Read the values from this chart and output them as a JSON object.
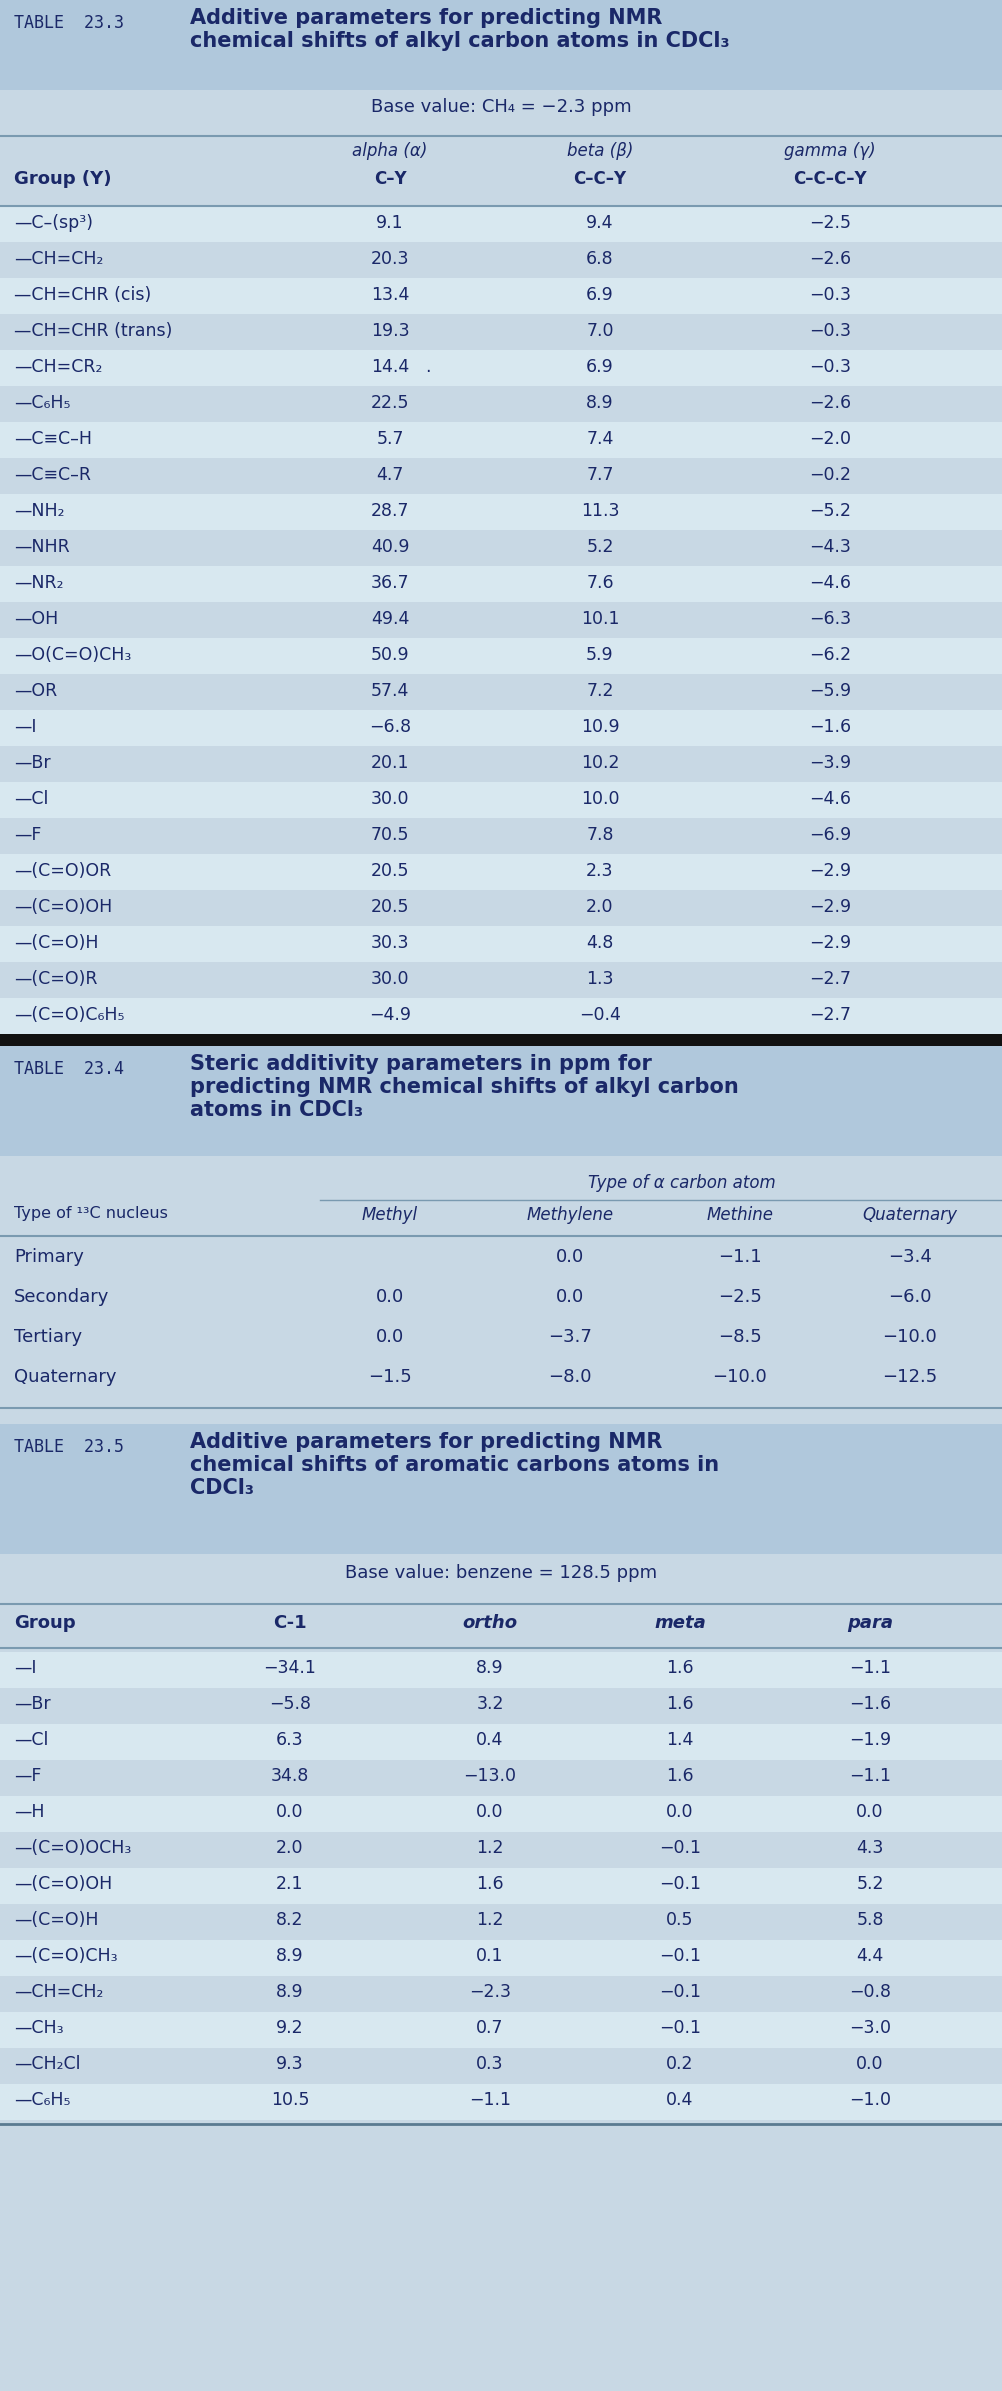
{
  "bg_color": "#c8d8e4",
  "header_bg": "#b0c8dc",
  "row_alt_color": "#d8e8f0",
  "row_base_color": "#c8d8e4",
  "table_header_bg": "#c0d4e4",
  "black_bar": "#111111",
  "text_dark": "#1a2868",
  "text_header": "#1a2868",
  "white": "#ffffff",
  "t1_label": "TABLE  23.3",
  "t1_title": "Additive parameters for predicting NMR\nchemical shifts of alkyl carbon atoms in CDCl₃",
  "t1_base": "Base value: CH₄ = −2.3 ppm",
  "t1_col_headers_top": [
    "alpha (α)",
    "beta (β)",
    "gamma (γ)"
  ],
  "t1_col_headers_bot": [
    "C–Y",
    "C–C–Y",
    "C–C–C–Y"
  ],
  "t1_col0_header": "Group (Y)",
  "t1_rows": [
    [
      "—C–(sp³)",
      "9.1",
      "9.4",
      "−2.5"
    ],
    [
      "—CH=CH₂",
      "20.3",
      "6.8",
      "−2.6"
    ],
    [
      "—CH=CHR (cis)",
      "13.4",
      "6.9",
      "−0.3"
    ],
    [
      "—CH=CHR (trans)",
      "19.3",
      "7.0",
      "−0.3"
    ],
    [
      "—CH=CR₂",
      "14.4",
      "6.9",
      "−0.3"
    ],
    [
      "—C₆H₅",
      "22.5",
      "8.9",
      "−2.6"
    ],
    [
      "—C≡C–H",
      "5.7",
      "7.4",
      "−2.0"
    ],
    [
      "—C≡C–R",
      "4.7",
      "7.7",
      "−0.2"
    ],
    [
      "—NH₂",
      "28.7",
      "11.3",
      "−5.2"
    ],
    [
      "—NHR",
      "40.9",
      "5.2",
      "−4.3"
    ],
    [
      "—NR₂",
      "36.7",
      "7.6",
      "−4.6"
    ],
    [
      "—OH",
      "49.4",
      "10.1",
      "−6.3"
    ],
    [
      "—O(C=O)CH₃",
      "50.9",
      "5.9",
      "−6.2"
    ],
    [
      "—OR",
      "57.4",
      "7.2",
      "−5.9"
    ],
    [
      "—I",
      "−6.8",
      "10.9",
      "−1.6"
    ],
    [
      "—Br",
      "20.1",
      "10.2",
      "−3.9"
    ],
    [
      "—Cl",
      "30.0",
      "10.0",
      "−4.6"
    ],
    [
      "—F",
      "70.5",
      "7.8",
      "−6.9"
    ],
    [
      "—(C=O)OR",
      "20.5",
      "2.3",
      "−2.9"
    ],
    [
      "—(C=O)OH",
      "20.5",
      "2.0",
      "−2.9"
    ],
    [
      "—(C=O)H",
      "30.3",
      "4.8",
      "−2.9"
    ],
    [
      "—(C=O)R",
      "30.0",
      "1.3",
      "−2.7"
    ],
    [
      "—(C=O)C₆H₅",
      "−4.9",
      "−0.4",
      "−2.7"
    ]
  ],
  "t1_dot_row": 4,
  "t2_label": "TABLE  23.4",
  "t2_title": "Steric additivity parameters in ppm for\npredicting NMR chemical shifts of alkyl carbon\natoms in CDCl₃",
  "t2_col_span_header": "Type of α carbon atom",
  "t2_col_headers": [
    "Methyl",
    "Methylene",
    "Methine",
    "Quaternary"
  ],
  "t2_row_header": "Type of ¹³C nucleus",
  "t2_rows": [
    [
      "Primary",
      "",
      "0.0",
      "−1.1",
      "−3.4"
    ],
    [
      "Secondary",
      "0.0",
      "0.0",
      "−2.5",
      "−6.0"
    ],
    [
      "Tertiary",
      "0.0",
      "−3.7",
      "−8.5",
      "−10.0"
    ],
    [
      "Quaternary",
      "−1.5",
      "−8.0",
      "−10.0",
      "−12.5"
    ]
  ],
  "t3_label": "TABLE  23.5",
  "t3_title": "Additive parameters for predicting NMR\nchemical shifts of aromatic carbons atoms in\nCDCl₃",
  "t3_base": "Base value: benzene = 128.5 ppm",
  "t3_col_headers": [
    "C-1",
    "ortho",
    "meta",
    "para"
  ],
  "t3_col0_header": "Group",
  "t3_rows": [
    [
      "—I",
      "−34.1",
      "8.9",
      "1.6",
      "−1.1"
    ],
    [
      "—Br",
      "−5.8",
      "3.2",
      "1.6",
      "−1.6"
    ],
    [
      "—Cl",
      "6.3",
      "0.4",
      "1.4",
      "−1.9"
    ],
    [
      "—F",
      "34.8",
      "−13.0",
      "1.6",
      "−1.1"
    ],
    [
      "—H",
      "0.0",
      "0.0",
      "0.0",
      "0.0"
    ],
    [
      "—(C=O)OCH₃",
      "2.0",
      "1.2",
      "−0.1",
      "4.3"
    ],
    [
      "—(C=O)OH",
      "2.1",
      "1.6",
      "−0.1",
      "5.2"
    ],
    [
      "—(C=O)H",
      "8.2",
      "1.2",
      "0.5",
      "5.8"
    ],
    [
      "—(C=O)CH₃",
      "8.9",
      "0.1",
      "−0.1",
      "4.4"
    ],
    [
      "—CH=CH₂",
      "8.9",
      "−2.3",
      "−0.1",
      "−0.8"
    ],
    [
      "—CH₃",
      "9.2",
      "0.7",
      "−0.1",
      "−3.0"
    ],
    [
      "—CH₂Cl",
      "9.3",
      "0.3",
      "0.2",
      "0.0"
    ],
    [
      "—C₆H₅",
      "10.5",
      "−1.1",
      "0.4",
      "−1.0"
    ]
  ]
}
